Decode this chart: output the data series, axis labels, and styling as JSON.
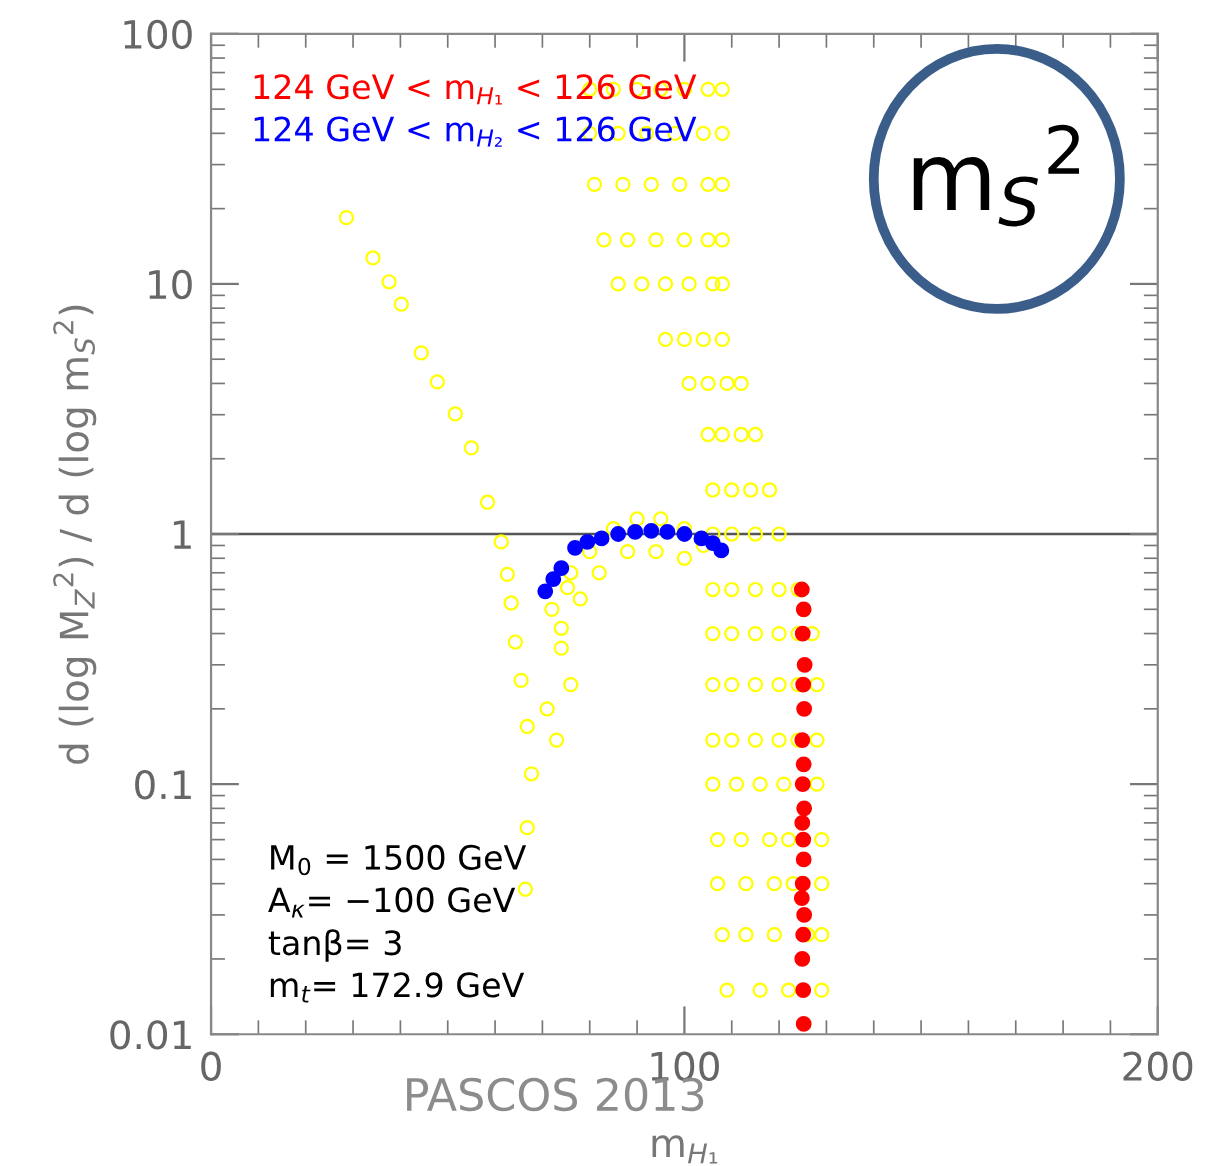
{
  "chart_data": {
    "type": "scatter",
    "xlabel": "m$_{H₁}$",
    "ylabel": "d (log M$_{Z}$$^{2}$) / d (log m$_{S}$$^{2}$)",
    "log": "y",
    "xlim": [
      0,
      200
    ],
    "ylim": [
      0.01,
      100
    ],
    "xticks": [
      0,
      100,
      200
    ],
    "yticks": [
      0.01,
      0.1,
      1,
      10,
      100
    ],
    "marker": "circle",
    "legend": "top left",
    "grid": false,
    "ref_lines": [
      {
        "axis": "y",
        "value": 1,
        "color": "#555555"
      }
    ],
    "annotations": [
      "M$_{0}$ = 1500 GeV\nA$_{κ}$= −100 GeV\ntanβ= 3\nm$_{t}$= 172.9 GeV",
      "m$_{S}$$^{2}$",
      "PASCOS 2013"
    ],
    "series": [
      {
        "color": "#ffff00",
        "x": [
          28.6,
          34.2,
          37.6,
          40.2,
          44.4,
          47.8,
          51.6,
          55,
          58.4,
          61.3,
          62.6,
          63.4,
          64.3,
          65.5,
          66.8,
          67.7,
          66.8,
          66.4,
          71,
          74,
          75.3,
          72,
          76,
          80,
          85,
          90,
          95,
          100,
          104,
          78,
          82,
          88,
          94,
          100,
          74,
          76,
          73,
          80,
          85,
          90,
          95,
          100,
          105,
          108,
          80,
          86,
          92,
          98,
          104,
          108,
          81,
          87,
          93,
          99,
          105,
          108,
          83,
          88,
          94,
          100,
          105,
          108,
          86,
          91,
          96,
          101,
          106,
          108,
          96,
          100,
          104,
          108,
          101,
          105,
          109,
          112,
          105,
          108,
          112,
          115,
          106,
          110,
          114,
          118,
          106,
          110,
          115,
          120,
          106,
          110,
          115,
          120,
          124,
          106,
          110,
          115,
          120,
          124,
          127,
          106,
          110,
          115,
          120,
          124,
          128,
          106,
          110,
          115,
          120,
          124,
          128,
          106,
          111,
          116,
          121,
          128,
          107,
          112,
          118,
          122,
          129,
          107,
          113,
          119,
          123,
          129,
          108,
          113,
          119,
          126,
          129,
          109,
          116,
          122,
          129
        ],
        "values": [
          18.4,
          12.7,
          10.2,
          8.3,
          5.3,
          4.06,
          3.02,
          2.21,
          1.34,
          0.93,
          0.69,
          0.53,
          0.37,
          0.26,
          0.17,
          0.11,
          0.067,
          0.038,
          0.2,
          0.42,
          0.61,
          0.5,
          0.7,
          0.85,
          1.05,
          1.15,
          1.15,
          1.05,
          0.9,
          0.55,
          0.7,
          0.85,
          0.85,
          0.8,
          0.35,
          0.25,
          0.15,
          60,
          60,
          60,
          60,
          60,
          60,
          60,
          40,
          40,
          40,
          40,
          40,
          40,
          25,
          25,
          25,
          25,
          25,
          25,
          15,
          15,
          15,
          15,
          15,
          15,
          10,
          10,
          10,
          10,
          10,
          10,
          6,
          6,
          6,
          6,
          4,
          4,
          4,
          4,
          2.5,
          2.5,
          2.5,
          2.5,
          1.5,
          1.5,
          1.5,
          1.5,
          1,
          1,
          1,
          1,
          0.6,
          0.6,
          0.6,
          0.6,
          0.6,
          0.4,
          0.4,
          0.4,
          0.4,
          0.4,
          0.4,
          0.25,
          0.25,
          0.25,
          0.25,
          0.25,
          0.25,
          0.15,
          0.15,
          0.15,
          0.15,
          0.15,
          0.15,
          0.1,
          0.1,
          0.1,
          0.1,
          0.1,
          0.06,
          0.06,
          0.06,
          0.06,
          0.06,
          0.04,
          0.04,
          0.04,
          0.04,
          0.04,
          0.025,
          0.025,
          0.025,
          0.025,
          0.025,
          0.015,
          0.015,
          0.015,
          0.015
        ]
      },
      {
        "name": "124 GeV < m$_{H₁}$ < 126 GeV",
        "color": "#ff0000",
        "x": [
          124.8,
          125.2,
          125.0,
          125.4,
          125.1,
          125.3,
          124.9,
          125.2,
          125.0,
          125.3,
          124.9,
          125.1,
          125.2,
          125.0,
          124.8,
          125.3,
          125.1,
          124.9,
          125.1,
          125.2
        ],
        "values": [
          0.6,
          0.5,
          0.4,
          0.3,
          0.25,
          0.2,
          0.15,
          0.12,
          0.1,
          0.08,
          0.07,
          0.06,
          0.05,
          0.04,
          0.035,
          0.03,
          0.025,
          0.02,
          0.015,
          0.011
        ]
      },
      {
        "name": "124 GeV < m$_{H₂}$ < 126 GeV",
        "color": "#0000ff",
        "x": [
          70.6,
          72.3,
          74,
          76.9,
          79.5,
          82.5,
          86,
          89.6,
          93,
          96.4,
          100,
          103.6,
          106,
          107.8
        ],
        "values": [
          0.59,
          0.66,
          0.73,
          0.88,
          0.93,
          0.96,
          1.0,
          1.02,
          1.03,
          1.02,
          1.0,
          0.96,
          0.92,
          0.86
        ]
      }
    ]
  }
}
